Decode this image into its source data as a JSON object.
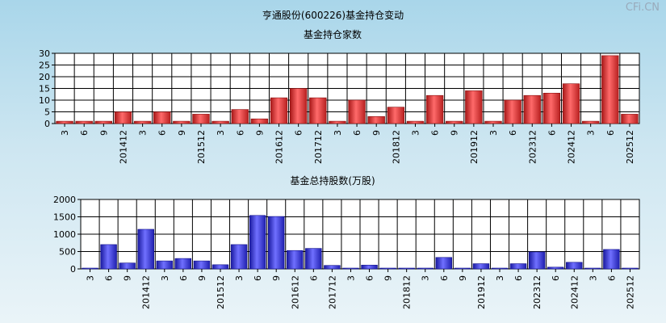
{
  "page_title": "亨通股份(600226)基金持仓变动",
  "watermark": "CFi.CN",
  "chart_data": [
    {
      "type": "bar",
      "title": "基金持仓家数",
      "color": "#e03c3c",
      "ylim": [
        0,
        30
      ],
      "yticks": [
        0,
        5,
        10,
        15,
        20,
        25,
        30
      ],
      "grid": true,
      "categories": [
        "3",
        "6",
        "9",
        "201412",
        "3",
        "6",
        "9",
        "201512",
        "3",
        "6",
        "9",
        "201612",
        "6",
        "201712",
        "3",
        "6",
        "9",
        "201812",
        "3",
        "6",
        "9",
        "201912",
        "3",
        "6",
        "202312",
        "6",
        "202412",
        "3",
        "6",
        "202512"
      ],
      "values": [
        1,
        1,
        1,
        5,
        1,
        5,
        1,
        4,
        1,
        6,
        2,
        11,
        15,
        11,
        1,
        10,
        3,
        7,
        1,
        12,
        1,
        14,
        1,
        10,
        12,
        13,
        17,
        1,
        29,
        4
      ]
    },
    {
      "type": "bar",
      "title": "基金总持股数(万股)",
      "color": "#3a3ae0",
      "ylim": [
        0,
        2000
      ],
      "yticks": [
        0,
        500,
        1000,
        1500,
        2000
      ],
      "grid": true,
      "categories": [
        "3",
        "6",
        "9",
        "201412",
        "3",
        "6",
        "9",
        "201512",
        "3",
        "6",
        "9",
        "201612",
        "6",
        "201712",
        "3",
        "6",
        "9",
        "201812",
        "3",
        "6",
        "9",
        "201912",
        "3",
        "6",
        "202312",
        "6",
        "202412",
        "3",
        "6",
        "202512"
      ],
      "values": [
        10,
        700,
        170,
        1140,
        230,
        300,
        230,
        120,
        700,
        1540,
        1510,
        530,
        590,
        100,
        20,
        110,
        20,
        10,
        10,
        330,
        20,
        150,
        20,
        150,
        490,
        50,
        190,
        20,
        560,
        20
      ]
    }
  ]
}
